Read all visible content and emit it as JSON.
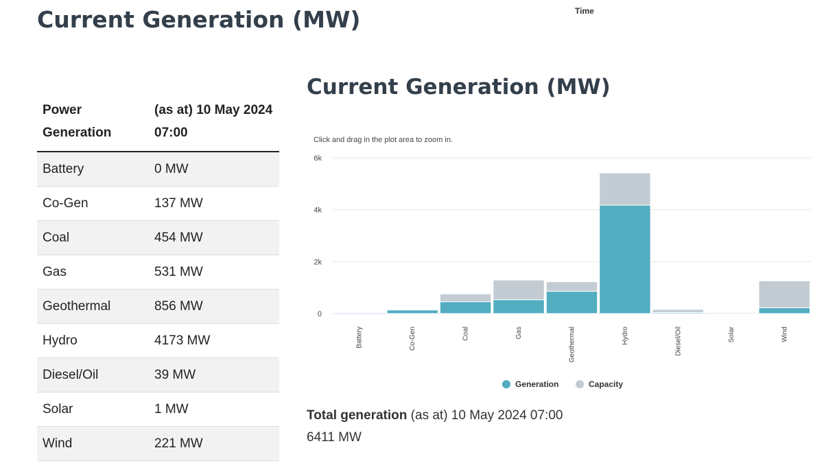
{
  "top_label": "Time",
  "left_title": "Current Generation (MW)",
  "table": {
    "headers": [
      "Power Generation",
      "(as at) 10 May 2024 07:00"
    ],
    "rows": [
      [
        "Battery",
        "0 MW"
      ],
      [
        "Co-Gen",
        "137 MW"
      ],
      [
        "Coal",
        "454 MW"
      ],
      [
        "Gas",
        "531 MW"
      ],
      [
        "Geothermal",
        "856 MW"
      ],
      [
        "Hydro",
        "4173 MW"
      ],
      [
        "Diesel/Oil",
        "39 MW"
      ],
      [
        "Solar",
        "1 MW"
      ],
      [
        "Wind",
        "221 MW"
      ]
    ]
  },
  "chart_title": "Current Generation (MW)",
  "chart_instruction": "Click and drag in the plot area to zoom in.",
  "total": {
    "label": "Total generation",
    "as_at": "(as at) 10 May 2024 07:00",
    "value": "6411 MW"
  },
  "colors": {
    "generation": "#52adc1",
    "capacity": "#c3ccd3",
    "grid": "#e6e6e6",
    "axis": "#ccd6eb"
  },
  "chart_data": {
    "type": "bar",
    "stacked": true,
    "categories": [
      "Battery",
      "Co-Gen",
      "Coal",
      "Gas",
      "Geothermal",
      "Hydro",
      "Diesel/Oil",
      "Solar",
      "Wind"
    ],
    "series": [
      {
        "name": "Generation",
        "values": [
          0,
          137,
          454,
          531,
          856,
          4173,
          39,
          1,
          221
        ]
      },
      {
        "name": "Capacity",
        "values": [
          0,
          0,
          300,
          760,
          370,
          1240,
          120,
          40,
          1040
        ]
      }
    ],
    "y_ticks": [
      0,
      2000,
      4000,
      6000
    ],
    "y_tick_labels": [
      "0",
      "2k",
      "4k",
      "6k"
    ],
    "ylim": [
      0,
      6000
    ],
    "grid": true,
    "legend_position": "bottom-center"
  }
}
